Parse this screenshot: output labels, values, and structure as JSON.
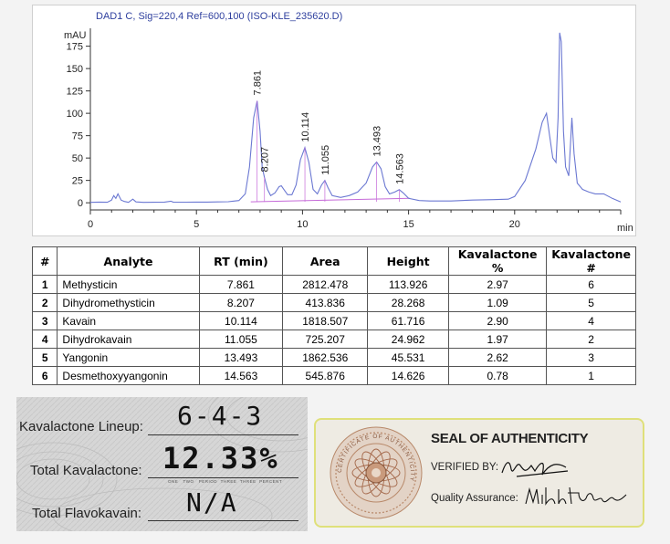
{
  "chart_data": {
    "type": "line",
    "title": "DAD1 C, Sig=220,4 Ref=600,100 (ISO-KLE_235620.D)",
    "ylabel": "mAU",
    "xlabel": "min",
    "xlim": [
      0,
      25
    ],
    "ylim": [
      -8,
      195
    ],
    "x_ticks": [
      0,
      5,
      10,
      15,
      20
    ],
    "y_ticks": [
      0,
      25,
      50,
      75,
      100,
      125,
      150,
      175
    ],
    "series": [
      {
        "points": [
          [
            0.0,
            0.5
          ],
          [
            0.4,
            0.8
          ],
          [
            0.8,
            0.6
          ],
          [
            1.0,
            3.0
          ],
          [
            1.1,
            8.0
          ],
          [
            1.2,
            5.0
          ],
          [
            1.3,
            10.0
          ],
          [
            1.45,
            3.0
          ],
          [
            1.6,
            1.5
          ],
          [
            1.8,
            0.5
          ],
          [
            2.0,
            4.0
          ],
          [
            2.15,
            1.0
          ],
          [
            2.5,
            0.5
          ],
          [
            3.0,
            0.6
          ],
          [
            3.5,
            0.8
          ],
          [
            3.8,
            1.8
          ],
          [
            3.9,
            0.8
          ],
          [
            4.5,
            0.7
          ],
          [
            5.0,
            0.8
          ],
          [
            5.5,
            0.8
          ],
          [
            6.0,
            1.0
          ],
          [
            6.5,
            1.2
          ],
          [
            7.0,
            2.5
          ],
          [
            7.3,
            10.0
          ],
          [
            7.5,
            40.0
          ],
          [
            7.7,
            95.0
          ],
          [
            7.861,
            113.926
          ],
          [
            8.0,
            80.0
          ],
          [
            8.1,
            40.0
          ],
          [
            8.207,
            28.268
          ],
          [
            8.35,
            15.0
          ],
          [
            8.5,
            8.0
          ],
          [
            8.7,
            11.0
          ],
          [
            8.9,
            18.0
          ],
          [
            9.0,
            19.0
          ],
          [
            9.15,
            14.0
          ],
          [
            9.3,
            9.0
          ],
          [
            9.5,
            9.0
          ],
          [
            9.7,
            20.0
          ],
          [
            9.9,
            48.0
          ],
          [
            10.114,
            61.716
          ],
          [
            10.3,
            45.0
          ],
          [
            10.5,
            15.0
          ],
          [
            10.7,
            10.0
          ],
          [
            10.9,
            20.0
          ],
          [
            11.055,
            24.962
          ],
          [
            11.2,
            17.0
          ],
          [
            11.4,
            8.0
          ],
          [
            11.8,
            6.0
          ],
          [
            12.2,
            8.0
          ],
          [
            12.6,
            12.0
          ],
          [
            13.0,
            22.0
          ],
          [
            13.3,
            40.0
          ],
          [
            13.493,
            45.531
          ],
          [
            13.7,
            38.0
          ],
          [
            13.9,
            18.0
          ],
          [
            14.1,
            10.0
          ],
          [
            14.35,
            12.0
          ],
          [
            14.563,
            14.626
          ],
          [
            14.75,
            11.0
          ],
          [
            15.0,
            5.0
          ],
          [
            15.5,
            2.5
          ],
          [
            16.0,
            2.0
          ],
          [
            17.0,
            2.0
          ],
          [
            18.0,
            3.0
          ],
          [
            19.0,
            3.5
          ],
          [
            19.7,
            4.0
          ],
          [
            20.0,
            7.0
          ],
          [
            20.5,
            25.0
          ],
          [
            21.0,
            60.0
          ],
          [
            21.3,
            90.0
          ],
          [
            21.5,
            100.0
          ],
          [
            21.65,
            75.0
          ],
          [
            21.8,
            50.0
          ],
          [
            21.95,
            45.0
          ],
          [
            22.05,
            95.0
          ],
          [
            22.12,
            190.0
          ],
          [
            22.2,
            180.0
          ],
          [
            22.3,
            80.0
          ],
          [
            22.4,
            40.0
          ],
          [
            22.55,
            30.0
          ],
          [
            22.7,
            95.0
          ],
          [
            22.8,
            55.0
          ],
          [
            22.95,
            22.0
          ],
          [
            23.2,
            15.0
          ],
          [
            23.5,
            12.0
          ],
          [
            23.8,
            10.0
          ],
          [
            24.2,
            10.0
          ],
          [
            24.6,
            5.0
          ],
          [
            25.0,
            1.0
          ]
        ],
        "color": "#6b78d2"
      }
    ],
    "baseline_color": "#c56ad8",
    "annotations": [
      {
        "label": "7.861",
        "x": 7.861,
        "y": 113.926
      },
      {
        "label": "8.207",
        "x": 8.207,
        "y": 28.268
      },
      {
        "label": "10.114",
        "x": 10.114,
        "y": 61.716
      },
      {
        "label": "11.055",
        "x": 11.055,
        "y": 24.962
      },
      {
        "label": "13.493",
        "x": 13.493,
        "y": 45.531
      },
      {
        "label": "14.563",
        "x": 14.563,
        "y": 14.626
      }
    ]
  },
  "table": {
    "headers": [
      "#",
      "Analyte",
      "RT (min)",
      "Area",
      "Height",
      "Kavalactone %",
      "Kavalactone #"
    ],
    "rows": [
      [
        "1",
        "Methysticin",
        "7.861",
        "2812.478",
        "113.926",
        "2.97",
        "6"
      ],
      [
        "2",
        "Dihydromethysticin",
        "8.207",
        "413.836",
        "28.268",
        "1.09",
        "5"
      ],
      [
        "3",
        "Kavain",
        "10.114",
        "1818.507",
        "61.716",
        "2.90",
        "4"
      ],
      [
        "4",
        "Dihydrokavain",
        "11.055",
        "725.207",
        "24.962",
        "1.97",
        "2"
      ],
      [
        "5",
        "Yangonin",
        "13.493",
        "1862.536",
        "45.531",
        "2.62",
        "3"
      ],
      [
        "6",
        "Desmethoxyyangonin",
        "14.563",
        "545.876",
        "14.626",
        "0.78",
        "1"
      ]
    ]
  },
  "certificate": {
    "lineup_label": "Kavalactone Lineup:",
    "lineup_value": "6-4-3",
    "total_kavalactone_label": "Total Kavalactone:",
    "total_kavalactone_value": "12.33%",
    "total_flavokavain_label": "Total Flavokavain:",
    "total_flavokavain_value": "N/A",
    "fine_print": [
      "ONE",
      "TWO",
      "PERIOD",
      "THREE",
      "THREE",
      "PERCENT"
    ]
  },
  "seal": {
    "title": "SEAL OF AUTHENTICITY",
    "verified_label": "VERIFIED BY:",
    "qa_label": "Quality Assurance:",
    "medallion_text": "CERTIFICATE OF AUTHENTICITY",
    "colors": {
      "border": "#dfe07a",
      "card": "#eeebe3",
      "medallion": "#b8896a"
    }
  }
}
